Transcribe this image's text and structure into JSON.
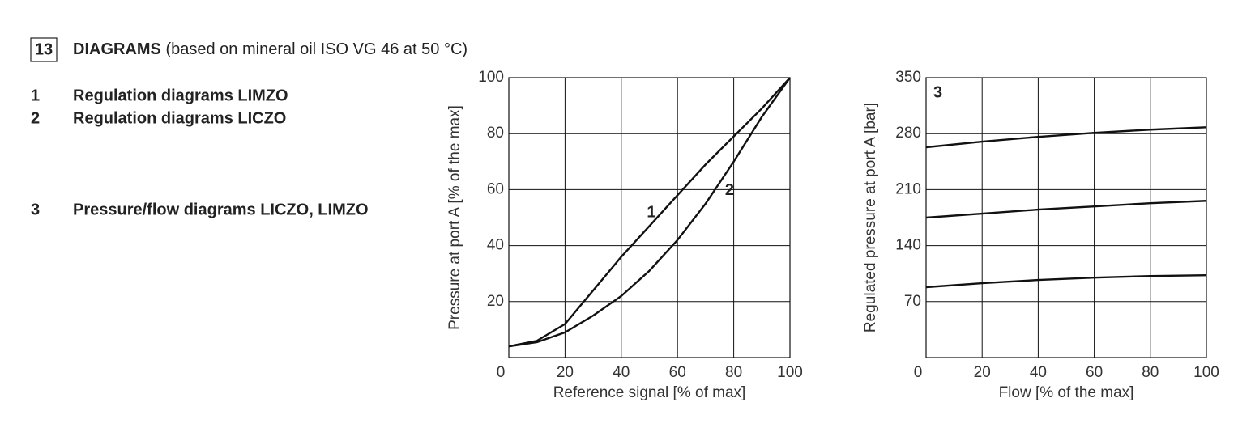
{
  "section": {
    "number": "13",
    "title": "DIAGRAMS",
    "subtitle": "(based on mineral oil ISO VG 46 at 50 °C)"
  },
  "items": [
    {
      "number": "1",
      "text": "Regulation diagrams LIMZO"
    },
    {
      "number": "2",
      "text": "Regulation diagrams LICZO"
    },
    {
      "number": "3",
      "text": "Pressure/flow diagrams LICZO, LIMZO"
    }
  ],
  "chart_data": [
    {
      "type": "line",
      "x_label": "Reference signal [% of max]",
      "y_label": "Pressure at port A [% of the max]",
      "x": [
        0,
        10,
        20,
        30,
        40,
        50,
        60,
        70,
        80,
        90,
        100
      ],
      "series": [
        {
          "name": "1",
          "color": "#111111",
          "values": [
            4,
            6,
            12,
            24,
            36,
            47,
            58,
            69,
            79,
            89,
            100
          ]
        },
        {
          "name": "2",
          "color": "#111111",
          "values": [
            4,
            5.5,
            9,
            15,
            22,
            31,
            42,
            55,
            70,
            86,
            100
          ]
        }
      ],
      "xlim": [
        0,
        100
      ],
      "ylim": [
        0,
        100
      ],
      "xticks": [
        0,
        20,
        40,
        60,
        80,
        100
      ],
      "yticks": [
        20,
        40,
        60,
        80,
        100
      ],
      "grid": true
    },
    {
      "type": "line",
      "title": "3",
      "x_label": "Flow [% of the max]",
      "y_label": "Regulated pressure at port A [bar]",
      "x": [
        0,
        20,
        40,
        60,
        80,
        100
      ],
      "series": [
        {
          "color": "#111111",
          "values": [
            263,
            270,
            276,
            281,
            285,
            288
          ]
        },
        {
          "color": "#111111",
          "values": [
            175,
            180,
            185,
            189,
            193,
            196
          ]
        },
        {
          "color": "#111111",
          "values": [
            88,
            93,
            97,
            100,
            102,
            103
          ]
        }
      ],
      "xlim": [
        0,
        100
      ],
      "ylim": [
        0,
        350
      ],
      "xticks": [
        0,
        20,
        40,
        60,
        80,
        100
      ],
      "yticks": [
        70,
        140,
        210,
        280,
        350
      ],
      "grid": true
    }
  ]
}
